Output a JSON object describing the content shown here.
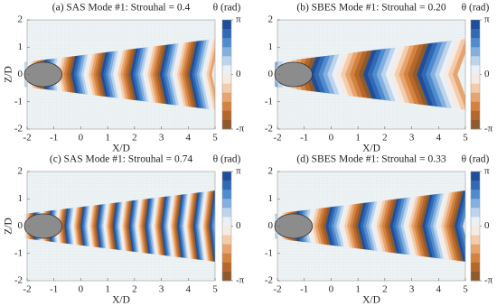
{
  "chart_data": [
    {
      "type": "contour",
      "title": "(a) SAS Mode #1: Strouhal = 0.4",
      "xlabel": "X/D",
      "ylabel": "Z/D",
      "xlim": [
        -2,
        5
      ],
      "ylim": [
        -2,
        2
      ],
      "xticks": [
        -2,
        -1,
        0,
        1,
        2,
        3,
        4,
        5
      ],
      "yticks": [
        -2,
        -1,
        0,
        1,
        2
      ],
      "colorbar": {
        "label": "θ (rad)",
        "lim": [
          -3.14159,
          3.14159
        ],
        "ticks": [
          {
            "value": -3.14159,
            "label": "-π"
          },
          0,
          {
            "value": 3.14159,
            "label": "π"
          }
        ]
      },
      "colormap": [
        "#1f4e9a",
        "#3169b5",
        "#4f8ccf",
        "#83b0df",
        "#bcd4ec",
        "#eaf0f6",
        "#f6ebe2",
        "#f3cdab",
        "#e8a46f",
        "#d3823f",
        "#b8672a",
        "#8f5a2c"
      ]
    },
    {
      "type": "contour",
      "title": "(b) SBES Mode #1: Strouhal = 0.20",
      "xlabel": "X/D",
      "xlim": [
        -2,
        5
      ],
      "ylim": [
        -2,
        2
      ],
      "xticks": [
        -2,
        -1,
        0,
        1,
        2,
        3,
        4,
        5
      ],
      "yticks": [
        -2,
        -1,
        0,
        1,
        2
      ],
      "colorbar": {
        "label": "θ (rad)",
        "lim": [
          -3.14159,
          3.14159
        ],
        "ticks": [
          {
            "value": -3.14159,
            "label": "-π"
          },
          0,
          {
            "value": 3.14159,
            "label": "π"
          }
        ]
      },
      "colormap": [
        "#1f4e9a",
        "#3169b5",
        "#4f8ccf",
        "#83b0df",
        "#bcd4ec",
        "#eaf0f6",
        "#f6ebe2",
        "#f3cdab",
        "#e8a46f",
        "#d3823f",
        "#b8672a",
        "#8f5a2c"
      ]
    },
    {
      "type": "contour",
      "title": "(c) SAS Mode #1: Strouhal = 0.74",
      "xlabel": "X/D",
      "ylabel": "Z/D",
      "xlim": [
        -2,
        5
      ],
      "ylim": [
        -2,
        2
      ],
      "xticks": [
        -2,
        -1,
        0,
        1,
        2,
        3,
        4,
        5
      ],
      "yticks": [
        -2,
        -1,
        0,
        1,
        2
      ],
      "colorbar": {
        "label": "θ (rad)",
        "lim": [
          -3.14159,
          3.14159
        ],
        "ticks": [
          {
            "value": -3.14159,
            "label": "-π"
          },
          0,
          {
            "value": 3.14159,
            "label": "π"
          }
        ]
      },
      "colormap": [
        "#1f4e9a",
        "#3169b5",
        "#4f8ccf",
        "#83b0df",
        "#bcd4ec",
        "#eaf0f6",
        "#f6ebe2",
        "#f3cdab",
        "#e8a46f",
        "#d3823f",
        "#b8672a",
        "#8f5a2c"
      ]
    },
    {
      "type": "contour",
      "title": "(d) SBES Mode #1: Strouhal = 0.33",
      "xlabel": "X/D",
      "xlim": [
        -2,
        5
      ],
      "ylim": [
        -2,
        2
      ],
      "xticks": [
        -2,
        -1,
        0,
        1,
        2,
        3,
        4,
        5
      ],
      "yticks": [
        -2,
        -1,
        0,
        1,
        2
      ],
      "colorbar": {
        "label": "θ (rad)",
        "lim": [
          -3.14159,
          3.14159
        ],
        "ticks": [
          {
            "value": -3.14159,
            "label": "-π"
          },
          0,
          {
            "value": 3.14159,
            "label": "π"
          }
        ]
      },
      "colormap": [
        "#1f4e9a",
        "#3169b5",
        "#4f8ccf",
        "#83b0df",
        "#bcd4ec",
        "#eaf0f6",
        "#f6ebe2",
        "#f3cdab",
        "#e8a46f",
        "#d3823f",
        "#b8672a",
        "#8f5a2c"
      ]
    }
  ]
}
